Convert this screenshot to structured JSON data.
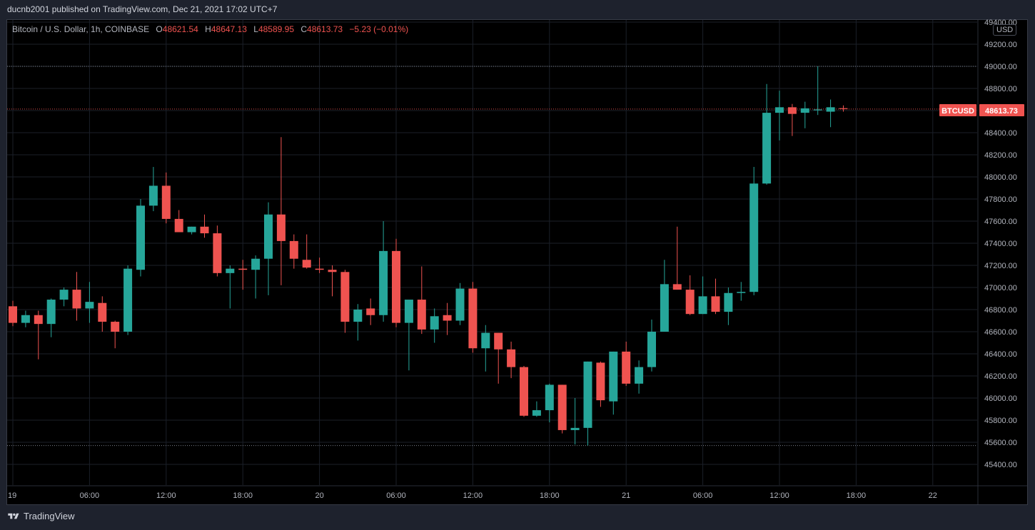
{
  "header": {
    "published_text": "ducnb2001 published on TradingView.com, Dec 21, 2021 17:02 UTC+7"
  },
  "legend": {
    "symbol": "Bitcoin / U.S. Dollar, 1h, COINBASE",
    "open_label": "O",
    "open_value": "48621.54",
    "high_label": "H",
    "high_value": "48647.13",
    "low_label": "L",
    "low_value": "48589.95",
    "close_label": "C",
    "close_value": "48613.73",
    "change": "−5.23 (−0.01%)"
  },
  "price_axis": {
    "currency": "USD",
    "last_label": "BTCUSD",
    "last_price": "48613.73"
  },
  "footer": {
    "brand": "TradingView"
  },
  "colors": {
    "up": "#26a69a",
    "down": "#ef5350",
    "background": "#000000",
    "grid": "#1b1f29"
  },
  "chart_data": {
    "type": "candlestick",
    "symbol": "BTCUSD",
    "interval": "1h",
    "ylim": [
      45260,
      49450
    ],
    "y_ticks": [
      45400,
      45600,
      45800,
      46000,
      46200,
      46400,
      46600,
      46800,
      47000,
      47200,
      47400,
      47600,
      47800,
      48000,
      48200,
      48400,
      48600,
      48800,
      49000,
      49200,
      49400
    ],
    "y_tick_labels": [
      "45400.00",
      "45600.00",
      "45800.00",
      "46000.00",
      "46200.00",
      "46400.00",
      "46600.00",
      "46800.00",
      "47000.00",
      "47200.00",
      "47400.00",
      "47600.00",
      "47800.00",
      "48000.00",
      "48200.00",
      "48400.00",
      "48600.00",
      "48800.00",
      "49000.00",
      "49200.00",
      "49400.00"
    ],
    "x_ticks": [
      {
        "label": "19",
        "index": 0
      },
      {
        "label": "06:00",
        "index": 6
      },
      {
        "label": "12:00",
        "index": 12
      },
      {
        "label": "18:00",
        "index": 18
      },
      {
        "label": "20",
        "index": 24
      },
      {
        "label": "06:00",
        "index": 30
      },
      {
        "label": "12:00",
        "index": 36
      },
      {
        "label": "18:00",
        "index": 42
      },
      {
        "label": "21",
        "index": 48
      },
      {
        "label": "06:00",
        "index": 54
      },
      {
        "label": "12:00",
        "index": 60
      },
      {
        "label": "18:00",
        "index": 66
      },
      {
        "label": "22",
        "index": 72
      }
    ],
    "horizontal_levels": [
      49000,
      48613.73,
      45570
    ],
    "last_price": 48613.73,
    "candles": [
      {
        "o": 46830,
        "h": 46880,
        "l": 46650,
        "c": 46680
      },
      {
        "o": 46680,
        "h": 46790,
        "l": 46640,
        "c": 46750
      },
      {
        "o": 46750,
        "h": 46790,
        "l": 46350,
        "c": 46670
      },
      {
        "o": 46670,
        "h": 46900,
        "l": 46550,
        "c": 46890
      },
      {
        "o": 46890,
        "h": 47000,
        "l": 46830,
        "c": 46980
      },
      {
        "o": 46980,
        "h": 47140,
        "l": 46700,
        "c": 46810
      },
      {
        "o": 46810,
        "h": 47050,
        "l": 46680,
        "c": 46870
      },
      {
        "o": 46860,
        "h": 46920,
        "l": 46600,
        "c": 46690
      },
      {
        "o": 46690,
        "h": 46700,
        "l": 46450,
        "c": 46600
      },
      {
        "o": 46600,
        "h": 47200,
        "l": 46570,
        "c": 47170
      },
      {
        "o": 47160,
        "h": 47800,
        "l": 47100,
        "c": 47740
      },
      {
        "o": 47740,
        "h": 48090,
        "l": 47690,
        "c": 47920
      },
      {
        "o": 47920,
        "h": 48040,
        "l": 47580,
        "c": 47620
      },
      {
        "o": 47620,
        "h": 47700,
        "l": 47520,
        "c": 47500
      },
      {
        "o": 47500,
        "h": 47550,
        "l": 47480,
        "c": 47550
      },
      {
        "o": 47550,
        "h": 47660,
        "l": 47450,
        "c": 47490
      },
      {
        "o": 47490,
        "h": 47560,
        "l": 47100,
        "c": 47130
      },
      {
        "o": 47130,
        "h": 47200,
        "l": 46810,
        "c": 47170
      },
      {
        "o": 47170,
        "h": 47250,
        "l": 46980,
        "c": 47160
      },
      {
        "o": 47160,
        "h": 47290,
        "l": 46900,
        "c": 47260
      },
      {
        "o": 47260,
        "h": 47770,
        "l": 46930,
        "c": 47660
      },
      {
        "o": 47660,
        "h": 48360,
        "l": 47020,
        "c": 47420
      },
      {
        "o": 47420,
        "h": 47480,
        "l": 47170,
        "c": 47260
      },
      {
        "o": 47250,
        "h": 47480,
        "l": 47170,
        "c": 47180
      },
      {
        "o": 47170,
        "h": 47270,
        "l": 47130,
        "c": 47160
      },
      {
        "o": 47160,
        "h": 47200,
        "l": 46920,
        "c": 47140
      },
      {
        "o": 47140,
        "h": 47160,
        "l": 46590,
        "c": 46690
      },
      {
        "o": 46690,
        "h": 46850,
        "l": 46520,
        "c": 46800
      },
      {
        "o": 46810,
        "h": 46900,
        "l": 46660,
        "c": 46750
      },
      {
        "o": 46750,
        "h": 47600,
        "l": 46690,
        "c": 47330
      },
      {
        "o": 47330,
        "h": 47440,
        "l": 46640,
        "c": 46680
      },
      {
        "o": 46680,
        "h": 46880,
        "l": 46250,
        "c": 46890
      },
      {
        "o": 46890,
        "h": 47190,
        "l": 46580,
        "c": 46620
      },
      {
        "o": 46620,
        "h": 46810,
        "l": 46500,
        "c": 46740
      },
      {
        "o": 46750,
        "h": 46860,
        "l": 46570,
        "c": 46700
      },
      {
        "o": 46700,
        "h": 47040,
        "l": 46660,
        "c": 46990
      },
      {
        "o": 46990,
        "h": 47050,
        "l": 46410,
        "c": 46450
      },
      {
        "o": 46450,
        "h": 46660,
        "l": 46240,
        "c": 46590
      },
      {
        "o": 46590,
        "h": 46590,
        "l": 46130,
        "c": 46440
      },
      {
        "o": 46440,
        "h": 46510,
        "l": 46180,
        "c": 46280
      },
      {
        "o": 46280,
        "h": 46290,
        "l": 45830,
        "c": 45840
      },
      {
        "o": 45840,
        "h": 45970,
        "l": 45830,
        "c": 45890
      },
      {
        "o": 45890,
        "h": 46130,
        "l": 45780,
        "c": 46120
      },
      {
        "o": 46120,
        "h": 46120,
        "l": 45680,
        "c": 45710
      },
      {
        "o": 45710,
        "h": 46000,
        "l": 45580,
        "c": 45730
      },
      {
        "o": 45730,
        "h": 46330,
        "l": 45570,
        "c": 46330
      },
      {
        "o": 46320,
        "h": 46330,
        "l": 45920,
        "c": 45980
      },
      {
        "o": 45970,
        "h": 46420,
        "l": 45850,
        "c": 46420
      },
      {
        "o": 46420,
        "h": 46510,
        "l": 46110,
        "c": 46130
      },
      {
        "o": 46130,
        "h": 46340,
        "l": 46040,
        "c": 46280
      },
      {
        "o": 46280,
        "h": 46710,
        "l": 46240,
        "c": 46600
      },
      {
        "o": 46600,
        "h": 47250,
        "l": 46600,
        "c": 47030
      },
      {
        "o": 47030,
        "h": 47550,
        "l": 46980,
        "c": 46980
      },
      {
        "o": 46980,
        "h": 47110,
        "l": 46750,
        "c": 46760
      },
      {
        "o": 46760,
        "h": 47100,
        "l": 46760,
        "c": 46920
      },
      {
        "o": 46920,
        "h": 47080,
        "l": 46760,
        "c": 46780
      },
      {
        "o": 46780,
        "h": 47000,
        "l": 46660,
        "c": 46950
      },
      {
        "o": 46950,
        "h": 47050,
        "l": 46880,
        "c": 46960
      },
      {
        "o": 46960,
        "h": 48090,
        "l": 46930,
        "c": 47940
      },
      {
        "o": 47940,
        "h": 48840,
        "l": 47930,
        "c": 48580
      },
      {
        "o": 48580,
        "h": 48780,
        "l": 48330,
        "c": 48630
      },
      {
        "o": 48630,
        "h": 48660,
        "l": 48370,
        "c": 48570
      },
      {
        "o": 48580,
        "h": 48680,
        "l": 48440,
        "c": 48620
      },
      {
        "o": 48610,
        "h": 49000,
        "l": 48560,
        "c": 48610
      },
      {
        "o": 48590,
        "h": 48700,
        "l": 48450,
        "c": 48630
      },
      {
        "o": 48621.54,
        "h": 48647.13,
        "l": 48589.95,
        "c": 48613.73
      }
    ]
  }
}
